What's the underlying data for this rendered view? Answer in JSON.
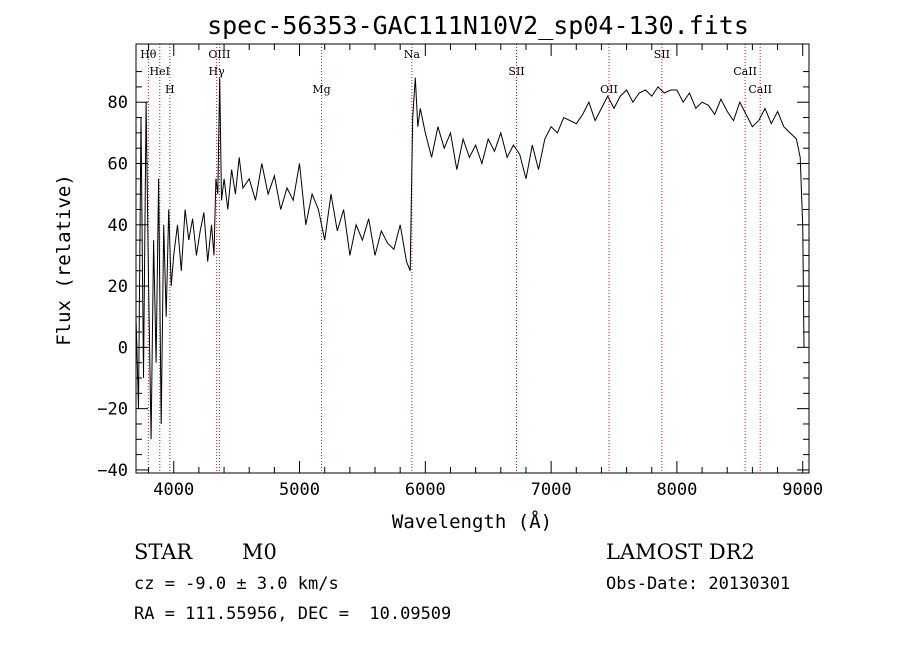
{
  "chart_data": {
    "type": "line",
    "title": "spec-56353-GAC111N10V2_sp04-130.fits",
    "xlabel": "Wavelength (Å)",
    "ylabel": "Flux (relative)",
    "xlim": [
      3700,
      9050
    ],
    "ylim": [
      -41,
      99
    ],
    "xticks": [
      4000,
      5000,
      6000,
      7000,
      8000,
      9000
    ],
    "yticks": [
      -40,
      -20,
      0,
      20,
      40,
      60,
      80
    ],
    "grid": false,
    "line_color": "#000000",
    "marker_color": "#b22222",
    "spectral_lines": [
      {
        "label": "Hθ",
        "x": 3798
      },
      {
        "label": "HeI",
        "x": 3889
      },
      {
        "label": "H",
        "x": 3969
      },
      {
        "label": "OIII",
        "x": 4363
      },
      {
        "label": "Hγ",
        "x": 4341
      },
      {
        "label": "Mg",
        "x": 5175
      },
      {
        "label": "Na",
        "x": 5893
      },
      {
        "label": "SII",
        "x": 6725
      },
      {
        "label": "OII",
        "x": 7460
      },
      {
        "label": "SII",
        "x": 7880
      },
      {
        "label": "CaII",
        "x": 8542
      },
      {
        "label": "CaII",
        "x": 8662
      }
    ],
    "series": [
      {
        "x": [
          3700,
          3720,
          3740,
          3760,
          3780,
          3800,
          3820,
          3840,
          3860,
          3880,
          3900,
          3920,
          3940,
          3960,
          3980,
          4000,
          4030,
          4060,
          4090,
          4120,
          4150,
          4180,
          4210,
          4240,
          4270,
          4300,
          4320,
          4335,
          4350,
          4365,
          4380,
          4400,
          4430,
          4460,
          4490,
          4520,
          4550,
          4600,
          4650,
          4700,
          4750,
          4800,
          4850,
          4900,
          4950,
          5000,
          5050,
          5100,
          5150,
          5200,
          5250,
          5300,
          5350,
          5400,
          5450,
          5500,
          5550,
          5600,
          5650,
          5700,
          5750,
          5800,
          5850,
          5880,
          5900,
          5920,
          5940,
          5960,
          6000,
          6050,
          6100,
          6150,
          6200,
          6250,
          6300,
          6350,
          6400,
          6450,
          6500,
          6550,
          6600,
          6650,
          6700,
          6750,
          6800,
          6850,
          6900,
          6950,
          7000,
          7050,
          7100,
          7150,
          7200,
          7250,
          7300,
          7350,
          7400,
          7450,
          7500,
          7550,
          7600,
          7650,
          7700,
          7750,
          7800,
          7850,
          7900,
          7950,
          8000,
          8050,
          8100,
          8150,
          8200,
          8250,
          8300,
          8350,
          8400,
          8450,
          8500,
          8550,
          8600,
          8650,
          8700,
          8750,
          8800,
          8850,
          8900,
          8950,
          8980,
          9000,
          9010
        ],
        "y": [
          10,
          -20,
          75,
          -10,
          80,
          20,
          -30,
          35,
          -5,
          55,
          -25,
          40,
          10,
          45,
          20,
          30,
          40,
          25,
          45,
          35,
          42,
          30,
          38,
          44,
          28,
          40,
          30,
          55,
          50,
          88,
          48,
          55,
          45,
          58,
          50,
          62,
          52,
          55,
          48,
          60,
          50,
          56,
          45,
          52,
          48,
          60,
          40,
          50,
          45,
          35,
          50,
          38,
          45,
          30,
          40,
          35,
          42,
          30,
          38,
          34,
          32,
          40,
          28,
          25,
          75,
          88,
          72,
          78,
          70,
          62,
          72,
          65,
          70,
          58,
          68,
          62,
          66,
          60,
          68,
          64,
          70,
          62,
          66,
          63,
          55,
          66,
          58,
          68,
          72,
          70,
          75,
          74,
          73,
          76,
          80,
          74,
          78,
          82,
          78,
          82,
          84,
          80,
          83,
          84,
          82,
          85,
          83,
          84,
          84,
          80,
          83,
          78,
          80,
          79,
          76,
          81,
          77,
          74,
          80,
          76,
          72,
          74,
          78,
          73,
          77,
          72,
          70,
          68,
          62,
          40,
          0
        ]
      }
    ]
  },
  "info": {
    "object_class": "STAR",
    "subclass": "M0",
    "redshift": "cz = -9.0 ± 3.0 km/s",
    "coords": "RA = 111.55956, DEC =  10.09509",
    "survey": "LAMOST DR2",
    "obs_date": "Obs-Date: 20130301"
  }
}
